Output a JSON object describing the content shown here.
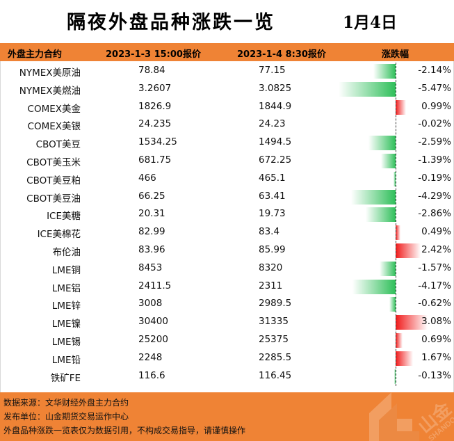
{
  "title": "隔夜外盘品种涨跌一览",
  "date": "1月4日",
  "columns": {
    "name": "外盘主力合约",
    "prev": "2023-1-3 15:00报价",
    "cur": "2023-1-4 8:30报价",
    "chg": "涨跌幅"
  },
  "colors": {
    "header": "#ef8335",
    "up": "#f01a1a",
    "down": "#2fbf5a"
  },
  "rows": [
    {
      "name": "NYMEX美原油",
      "prev": "78.84",
      "cur": "77.15",
      "chg": "-2.14%"
    },
    {
      "name": "NYMEX美燃油",
      "prev": "3.2607",
      "cur": "3.0825",
      "chg": "-5.47%"
    },
    {
      "name": "COMEX美金",
      "prev": "1826.9",
      "cur": "1844.9",
      "chg": "0.99%"
    },
    {
      "name": "COMEX美银",
      "prev": "24.235",
      "cur": "24.23",
      "chg": "-0.02%"
    },
    {
      "name": "CBOT美豆",
      "prev": "1534.25",
      "cur": "1494.5",
      "chg": "-2.59%"
    },
    {
      "name": "CBOT美玉米",
      "prev": "681.75",
      "cur": "672.25",
      "chg": "-1.39%"
    },
    {
      "name": "CBOT美豆粕",
      "prev": "466",
      "cur": "465.1",
      "chg": "-0.19%"
    },
    {
      "name": "CBOT美豆油",
      "prev": "66.25",
      "cur": "63.41",
      "chg": "-4.29%"
    },
    {
      "name": "ICE美糖",
      "prev": "20.31",
      "cur": "19.73",
      "chg": "-2.86%"
    },
    {
      "name": "ICE美棉花",
      "prev": "82.99",
      "cur": "83.4",
      "chg": "0.49%"
    },
    {
      "name": "布伦油",
      "prev": "83.96",
      "cur": "85.99",
      "chg": "2.42%"
    },
    {
      "name": "LME铜",
      "prev": "8453",
      "cur": "8320",
      "chg": "-1.57%"
    },
    {
      "name": "LME铝",
      "prev": "2411.5",
      "cur": "2311",
      "chg": "-4.17%"
    },
    {
      "name": "LME锌",
      "prev": "3008",
      "cur": "2989.5",
      "chg": "-0.62%"
    },
    {
      "name": "LME镍",
      "prev": "30400",
      "cur": "31335",
      "chg": "3.08%"
    },
    {
      "name": "LME锡",
      "prev": "25200",
      "cur": "25375",
      "chg": "0.69%"
    },
    {
      "name": "LME铅",
      "prev": "2248",
      "cur": "2285.5",
      "chg": "1.67%"
    },
    {
      "name": "铁矿FE",
      "prev": "116.6",
      "cur": "116.45",
      "chg": "-0.13%"
    }
  ],
  "footer": {
    "source": "数据来源：文华财经外盘主力合约",
    "publisher": "发布单位：山金期货交易运作中心",
    "disclaimer": "外盘品种涨跌一览表仅为数据引用，不构成交易指导，请谨慎操作"
  },
  "watermark_text": "SHANDO"
}
